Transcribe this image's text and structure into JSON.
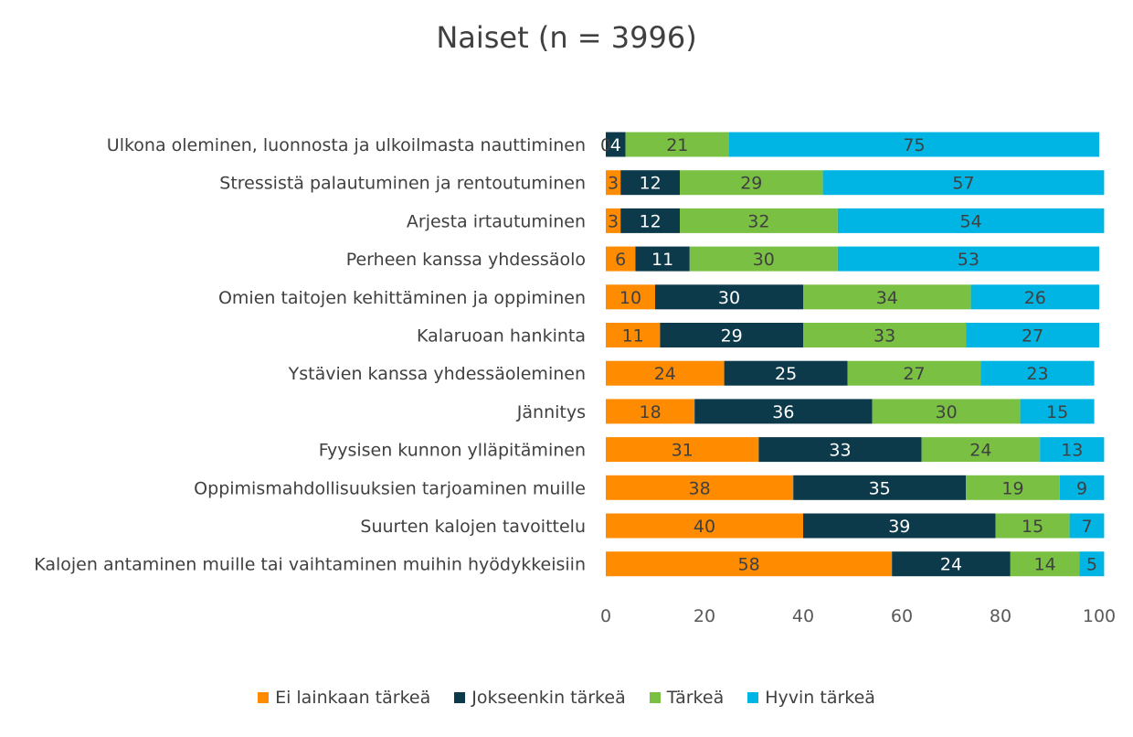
{
  "chart_data": {
    "type": "bar",
    "orientation": "horizontal",
    "stacked": true,
    "title": "Naiset (n = 3996)",
    "categories": [
      "Ulkona oleminen, luonnosta ja ulkoilmasta nauttiminen",
      "Stressistä palautuminen ja rentoutuminen",
      "Arjesta irtautuminen",
      "Perheen kanssa yhdessäolo",
      "Omien taitojen kehittäminen ja oppiminen",
      "Kalaruoan hankinta",
      "Ystävien kanssa yhdessäoleminen",
      "Jännitys",
      "Fyysisen kunnon ylläpitäminen",
      "Oppimismahdollisuuksien tarjoaminen muille",
      "Suurten kalojen tavoittelu",
      "Kalojen antaminen muille tai vaihtaminen muihin hyödykkeisiin"
    ],
    "series": [
      {
        "name": "Ei lainkaan tärkeä",
        "color": "#FF8C00",
        "label_color": "#404040",
        "values": [
          0,
          3,
          3,
          6,
          10,
          11,
          24,
          18,
          31,
          38,
          40,
          58
        ]
      },
      {
        "name": "Jokseenkin tärkeä",
        "color": "#0D3A4A",
        "label_color": "#ffffff",
        "values": [
          4,
          12,
          12,
          11,
          30,
          29,
          25,
          36,
          33,
          35,
          39,
          24
        ]
      },
      {
        "name": "Tärkeä",
        "color": "#7AC143",
        "label_color": "#404040",
        "values": [
          21,
          29,
          32,
          30,
          34,
          33,
          27,
          30,
          24,
          19,
          15,
          14
        ]
      },
      {
        "name": "Hyvin tärkeä",
        "color": "#00B4E3",
        "label_color": "#404040",
        "values": [
          75,
          57,
          54,
          53,
          26,
          27,
          23,
          15,
          13,
          9,
          7,
          5
        ]
      }
    ],
    "xlim": [
      0,
      100
    ],
    "xticks": [
      0,
      20,
      40,
      60,
      80,
      100
    ],
    "grid": false,
    "legend_position": "bottom"
  }
}
